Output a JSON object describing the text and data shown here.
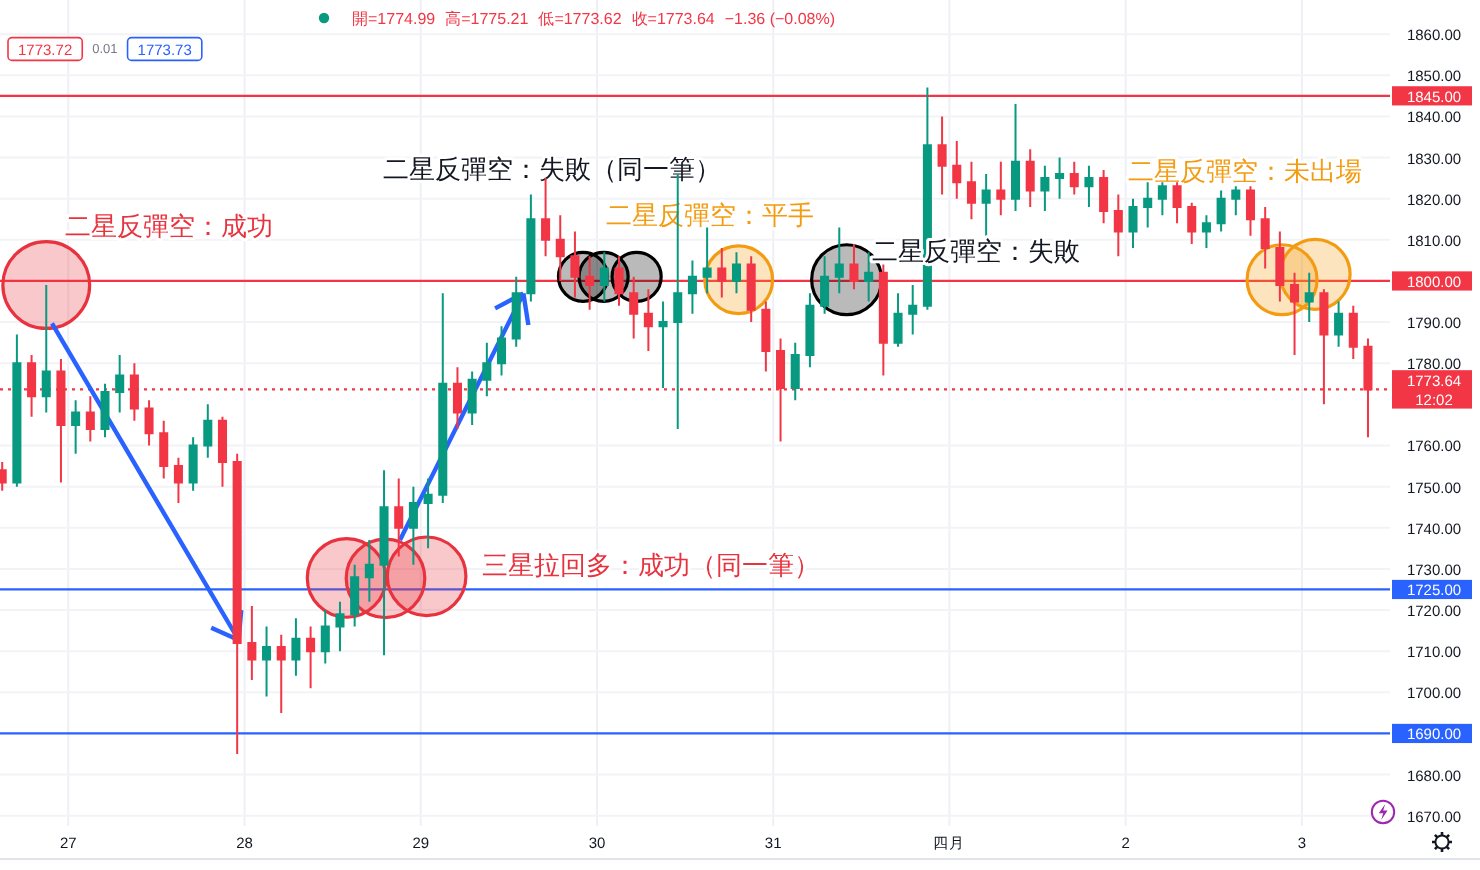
{
  "chart_data": {
    "type": "candlestick",
    "x": [
      "--03-26T15:00",
      "--03-26T17:00",
      "--03-26T19:00",
      "--03-26T21:00",
      "--03-26T23:00",
      "--03-27T01:00",
      "--03-27T03:00",
      "--03-27T05:00",
      "--03-27T07:00",
      "--03-27T09:00",
      "--03-27T11:00",
      "--03-27T13:00",
      "--03-27T15:00",
      "--03-27T17:00",
      "--03-27T19:00",
      "--03-27T21:00",
      "--03-27T23:00",
      "--03-28T01:00",
      "--03-28T03:00",
      "--03-28T05:00",
      "--03-28T07:00",
      "--03-28T09:00",
      "--03-28T11:00",
      "--03-28T13:00",
      "--03-28T15:00",
      "--03-28T17:00",
      "--03-28T19:00",
      "--03-28T21:00",
      "--03-28T23:00",
      "--03-29T01:00",
      "--03-29T03:00",
      "--03-29T05:00",
      "--03-29T07:00",
      "--03-29T09:00",
      "--03-29T11:00",
      "--03-29T13:00",
      "--03-29T15:00",
      "--03-29T17:00",
      "--03-29T19:00",
      "--03-29T21:00",
      "--03-29T23:00",
      "--03-30T01:00",
      "--03-30T03:00",
      "--03-30T05:00",
      "--03-30T07:00",
      "--03-30T09:00",
      "--03-30T11:00",
      "--03-30T13:00",
      "--03-30T15:00",
      "--03-30T17:00",
      "--03-30T19:00",
      "--03-30T21:00",
      "--03-30T23:00",
      "--03-31T01:00",
      "--03-31T03:00",
      "--03-31T05:00",
      "--03-31T07:00",
      "--03-31T09:00",
      "--03-31T11:00",
      "--03-31T13:00",
      "--03-31T15:00",
      "--03-31T17:00",
      "--03-31T19:00",
      "--03-31T21:00",
      "--03-31T23:00",
      "--04-01T01:00",
      "--04-01T03:00",
      "--04-01T05:00",
      "--04-01T07:00",
      "--04-01T09:00",
      "--04-01T11:00",
      "--04-01T13:00",
      "--04-01T15:00",
      "--04-01T17:00",
      "--04-01T19:00",
      "--04-01T21:00",
      "--04-01T23:00",
      "--04-02T01:00",
      "--04-02T03:00",
      "--04-02T05:00",
      "--04-02T07:00",
      "--04-02T09:00",
      "--04-02T11:00",
      "--04-02T13:00",
      "--04-02T15:00",
      "--04-02T17:00",
      "--04-02T19:00",
      "--04-02T21:00",
      "--04-02T23:00",
      "--04-03T01:00",
      "--04-03T03:00",
      "--04-03T05:00",
      "--04-03T07:00",
      "--04-03T09:00"
    ],
    "ohlc": [
      [
        1754,
        1756,
        1749,
        1751
      ],
      [
        1751,
        1787,
        1750,
        1780
      ],
      [
        1780,
        1782,
        1767,
        1772
      ],
      [
        1772,
        1799,
        1768,
        1778
      ],
      [
        1778,
        1781,
        1751,
        1765
      ],
      [
        1765,
        1771,
        1758,
        1768
      ],
      [
        1768,
        1772,
        1761,
        1764
      ],
      [
        1764,
        1775,
        1762,
        1773
      ],
      [
        1773,
        1782,
        1768,
        1777
      ],
      [
        1777,
        1780,
        1766,
        1769
      ],
      [
        1769,
        1771,
        1760,
        1763
      ],
      [
        1763,
        1766,
        1752,
        1755
      ],
      [
        1755,
        1757,
        1746,
        1751
      ],
      [
        1751,
        1762,
        1749,
        1760
      ],
      [
        1760,
        1770,
        1757,
        1766
      ],
      [
        1766,
        1767,
        1750,
        1756
      ],
      [
        1756,
        1758,
        1685,
        1712
      ],
      [
        1712,
        1721,
        1703,
        1708
      ],
      [
        1708,
        1716,
        1699,
        1711
      ],
      [
        1711,
        1714,
        1695,
        1708
      ],
      [
        1708,
        1718,
        1704,
        1713
      ],
      [
        1713,
        1716,
        1701,
        1710
      ],
      [
        1710,
        1720,
        1707,
        1716
      ],
      [
        1716,
        1722,
        1710,
        1719
      ],
      [
        1719,
        1731,
        1716,
        1728
      ],
      [
        1728,
        1737,
        1722,
        1731
      ],
      [
        1731,
        1754,
        1709,
        1745
      ],
      [
        1745,
        1752,
        1733,
        1740
      ],
      [
        1740,
        1750,
        1731,
        1746
      ],
      [
        1746,
        1752,
        1735,
        1748
      ],
      [
        1748,
        1797,
        1746,
        1775
      ],
      [
        1775,
        1779,
        1764,
        1768
      ],
      [
        1768,
        1778,
        1765,
        1776
      ],
      [
        1776,
        1785,
        1772,
        1780
      ],
      [
        1780,
        1789,
        1777,
        1786
      ],
      [
        1786,
        1801,
        1784,
        1797
      ],
      [
        1797,
        1821,
        1795,
        1815
      ],
      [
        1815,
        1825,
        1806,
        1810
      ],
      [
        1810,
        1816,
        1800,
        1806
      ],
      [
        1806,
        1812,
        1796,
        1801
      ],
      [
        1801,
        1806,
        1793,
        1799
      ],
      [
        1799,
        1807,
        1795,
        1803
      ],
      [
        1803,
        1806,
        1794,
        1797
      ],
      [
        1797,
        1801,
        1786,
        1792
      ],
      [
        1792,
        1798,
        1783,
        1789
      ],
      [
        1789,
        1795,
        1774,
        1790
      ],
      [
        1790,
        1826,
        1764,
        1797
      ],
      [
        1797,
        1805,
        1792,
        1801
      ],
      [
        1801,
        1813,
        1797,
        1803
      ],
      [
        1803,
        1808,
        1796,
        1800
      ],
      [
        1800,
        1807,
        1797,
        1804
      ],
      [
        1804,
        1806,
        1790,
        1793
      ],
      [
        1793,
        1795,
        1778,
        1783
      ],
      [
        1783,
        1786,
        1761,
        1774
      ],
      [
        1774,
        1785,
        1771,
        1782
      ],
      [
        1782,
        1797,
        1779,
        1794
      ],
      [
        1794,
        1806,
        1792,
        1801
      ],
      [
        1801,
        1813,
        1797,
        1804
      ],
      [
        1804,
        1809,
        1798,
        1800
      ],
      [
        1800,
        1807,
        1795,
        1802
      ],
      [
        1802,
        1804,
        1777,
        1785
      ],
      [
        1785,
        1797,
        1784,
        1792
      ],
      [
        1792,
        1799,
        1787,
        1794
      ],
      [
        1794,
        1847,
        1793,
        1833
      ],
      [
        1833,
        1840,
        1821,
        1828
      ],
      [
        1828,
        1834,
        1820,
        1824
      ],
      [
        1824,
        1829,
        1815,
        1819
      ],
      [
        1819,
        1826,
        1811,
        1822
      ],
      [
        1822,
        1829,
        1816,
        1820
      ],
      [
        1820,
        1843,
        1817,
        1829
      ],
      [
        1829,
        1832,
        1818,
        1822
      ],
      [
        1822,
        1828,
        1817,
        1825
      ],
      [
        1825,
        1830,
        1820,
        1826
      ],
      [
        1826,
        1829,
        1821,
        1823
      ],
      [
        1823,
        1828,
        1818,
        1825
      ],
      [
        1825,
        1827,
        1814,
        1817
      ],
      [
        1817,
        1821,
        1806,
        1812
      ],
      [
        1812,
        1820,
        1808,
        1818
      ],
      [
        1818,
        1824,
        1813,
        1820
      ],
      [
        1820,
        1824,
        1816,
        1823
      ],
      [
        1823,
        1824,
        1814,
        1818
      ],
      [
        1818,
        1819,
        1809,
        1812
      ],
      [
        1812,
        1816,
        1808,
        1814
      ],
      [
        1814,
        1822,
        1812,
        1820
      ],
      [
        1820,
        1823,
        1816,
        1822
      ],
      [
        1822,
        1823,
        1811,
        1815
      ],
      [
        1815,
        1818,
        1803,
        1808
      ],
      [
        1808,
        1812,
        1795,
        1799
      ],
      [
        1799,
        1802,
        1782,
        1795
      ],
      [
        1795,
        1802,
        1790,
        1797
      ],
      [
        1797,
        1798,
        1770,
        1787
      ],
      [
        1787,
        1795,
        1784,
        1792
      ],
      [
        1792,
        1794,
        1781,
        1784
      ],
      [
        1784,
        1786,
        1762,
        1773.64
      ]
    ],
    "colors": [
      "#f23645",
      "#089981",
      "#f23645",
      "#089981",
      "#f23645",
      "#089981",
      "#f23645",
      "#089981",
      "#089981",
      "#f23645",
      "#f23645",
      "#f23645",
      "#f23645",
      "#089981",
      "#089981",
      "#f23645",
      "#f23645",
      "#f23645",
      "#089981",
      "#f23645",
      "#089981",
      "#f23645",
      "#089981",
      "#089981",
      "#089981",
      "#089981",
      "#089981",
      "#f23645",
      "#089981",
      "#089981",
      "#089981",
      "#f23645",
      "#089981",
      "#089981",
      "#089981",
      "#089981",
      "#089981",
      "#f23645",
      "#f23645",
      "#f23645",
      "#f23645",
      "#089981",
      "#f23645",
      "#f23645",
      "#f23645",
      "#089981",
      "#089981",
      "#089981",
      "#089981",
      "#f23645",
      "#089981",
      "#f23645",
      "#f23645",
      "#f23645",
      "#089981",
      "#089981",
      "#089981",
      "#089981",
      "#f23645",
      "#089981",
      "#f23645",
      "#089981",
      "#089981",
      "#089981",
      "#f23645",
      "#f23645",
      "#f23645",
      "#089981",
      "#f23645",
      "#089981",
      "#f23645",
      "#089981",
      "#089981",
      "#f23645",
      "#089981",
      "#f23645",
      "#f23645",
      "#089981",
      "#089981",
      "#089981",
      "#f23645",
      "#f23645",
      "#089981",
      "#089981",
      "#089981",
      "#f23645",
      "#f23645",
      "#f23645",
      "#f23645",
      "#089981",
      "#f23645",
      "#089981",
      "#f23645",
      "#f23645"
    ],
    "series": [
      {
        "type": "bubble",
        "color": "#e8323e",
        "x": [
          "--03-26T21:00",
          "--03-28T13:54",
          "--03-28T19:12",
          "--03-29T00:48"
        ],
        "values": [
          1799,
          1727.8,
          1727.7,
          1728.2
        ],
        "sizes": [
          1,
          0.82,
          0.82,
          0.82
        ]
      },
      {
        "type": "bubble",
        "color": "#000000",
        "x": [
          "--03-29T22:06",
          "--03-30T00:54",
          "--03-30T05:24",
          "--03-31T10:00"
        ],
        "values": [
          1801,
          1801,
          1801,
          1800.3
        ],
        "sizes": [
          0.32,
          0.32,
          0.32,
          0.65
        ]
      },
      {
        "type": "bubble",
        "color": "#f39c12",
        "x": [
          "--03-30T19:18",
          "--04-02T21:18",
          "--04-03T01:48"
        ],
        "values": [
          1800.3,
          1800.3,
          1801.6
        ],
        "sizes": [
          0.61,
          0.65,
          0.65
        ]
      }
    ],
    "xlim": [
      "--03-26T14:42",
      "--04-03T12:00"
    ],
    "ylim": [
      1667.5,
      1868.3
    ],
    "xticks": [
      {
        "value": "--03-27",
        "label": "27"
      },
      {
        "value": "--03-28",
        "label": "28"
      },
      {
        "value": "--03-29",
        "label": "29"
      },
      {
        "value": "--03-30",
        "label": "30"
      },
      {
        "value": "--03-31",
        "label": "31"
      },
      {
        "value": "--04-01",
        "label": "四月"
      },
      {
        "value": "--04-02",
        "label": "2"
      },
      {
        "value": "--04-03",
        "label": "3"
      }
    ],
    "yticks": [
      {
        "value": 1670,
        "label": "1670.00"
      },
      {
        "value": 1680,
        "label": "1680.00"
      },
      {
        "value": 1700,
        "label": "1700.00"
      },
      {
        "value": 1710,
        "label": "1710.00"
      },
      {
        "value": 1720,
        "label": "1720.00"
      },
      {
        "value": 1730,
        "label": "1730.00"
      },
      {
        "value": 1740,
        "label": "1740.00"
      },
      {
        "value": 1750,
        "label": "1750.00"
      },
      {
        "value": 1760,
        "label": "1760.00"
      },
      {
        "value": 1780,
        "label": "1780.00"
      },
      {
        "value": 1790,
        "label": "1790.00"
      },
      {
        "value": 1810,
        "label": "1810.00"
      },
      {
        "value": 1820,
        "label": "1820.00"
      },
      {
        "value": 1830,
        "label": "1830.00"
      },
      {
        "value": 1840,
        "label": "1840.00"
      },
      {
        "value": 1850,
        "label": "1850.00"
      },
      {
        "value": 1860,
        "label": "1860.00"
      }
    ],
    "grid": true,
    "ref_lines": [
      {
        "axis": "y",
        "value": 1845,
        "label": "1845.00",
        "color": "#f23645"
      },
      {
        "axis": "y",
        "value": 1800,
        "label": "1800.00",
        "color": "#f23645"
      },
      {
        "axis": "y",
        "value": 1773.64,
        "label": "1773.64\n12:02",
        "color": "#f23645",
        "line_style": "dotted"
      },
      {
        "axis": "y",
        "value": 1725,
        "label": "1725.00",
        "color": "#2962ff"
      },
      {
        "axis": "y",
        "value": 1690,
        "label": "1690.00",
        "color": "#2962ff"
      }
    ],
    "annotations": [
      "開=1774.99",
      "高=1775.21",
      "低=1773.62",
      "收=1773.64",
      "−1.36 (−0.08%)",
      "1773.72",
      "0.01",
      "1773.73",
      "二星反彈空：成功",
      "二星反彈空：失敗（同一筆）",
      "二星反彈空：平手",
      "二星反彈空：失敗",
      "二星反彈空：未出場",
      "三星拉回多：成功（同一筆）"
    ]
  }
}
